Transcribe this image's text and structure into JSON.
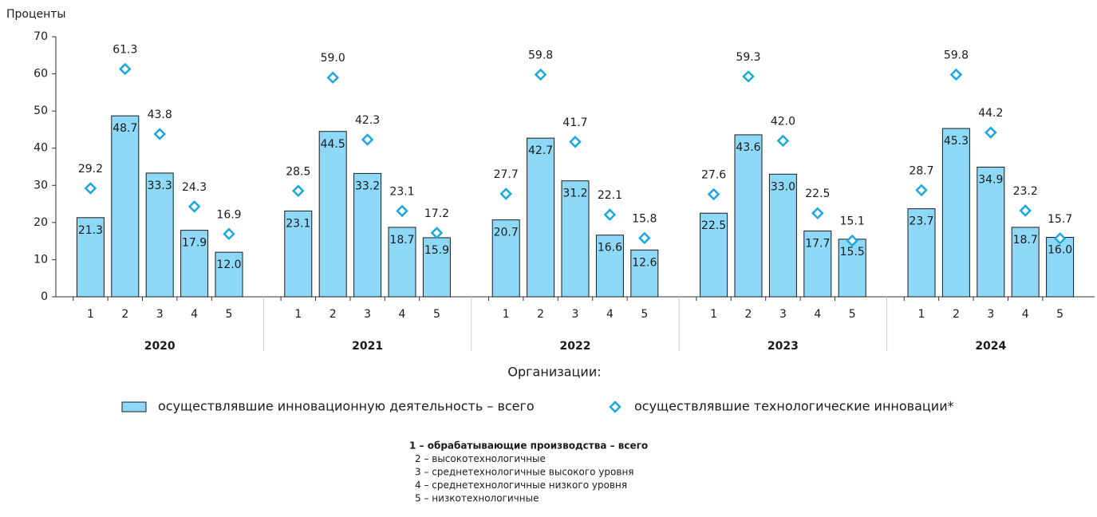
{
  "chart_data": {
    "type": "bar",
    "y_label": "Проценты",
    "groups": [
      "2020",
      "2021",
      "2022",
      "2023",
      "2024"
    ],
    "categories": [
      "1",
      "2",
      "3",
      "4",
      "5",
      "1",
      "2",
      "3",
      "4",
      "5",
      "1",
      "2",
      "3",
      "4",
      "5",
      "1",
      "2",
      "3",
      "4",
      "5",
      "1",
      "2",
      "3",
      "4",
      "5"
    ],
    "ylim": [
      0,
      70
    ],
    "yticks": [
      0,
      10,
      20,
      30,
      40,
      50,
      60,
      70
    ],
    "legend_title": "Организации:",
    "series": [
      {
        "name": "осуществлявшие инновационную деятельность – всего",
        "kind": "bar",
        "color": "#8fd9f8",
        "values": [
          21.3,
          48.7,
          33.3,
          17.9,
          12.0,
          23.1,
          44.5,
          33.2,
          18.7,
          15.9,
          20.7,
          42.7,
          31.2,
          16.6,
          12.6,
          22.5,
          43.6,
          33.0,
          17.7,
          15.5,
          23.7,
          45.3,
          34.9,
          18.7,
          16.0
        ],
        "value_labels": [
          "21.3",
          "48.7",
          "33.3",
          "17.9",
          "12.0",
          "23.1",
          "44.5",
          "33.2",
          "18.7",
          "15.9",
          "20.7",
          "42.7",
          "31.2",
          "16.6",
          "12.6",
          "22.5",
          "43.6",
          "33.0",
          "17.7",
          "15.5",
          "23.7",
          "45.3",
          "34.9",
          "18.7",
          "16.0"
        ]
      },
      {
        "name": "осуществлявшие технологические инновации*",
        "kind": "diamond",
        "color": "#1aa8e0",
        "values": [
          29.2,
          61.3,
          43.8,
          24.3,
          16.9,
          28.5,
          59.0,
          42.3,
          23.1,
          17.2,
          27.7,
          59.8,
          41.7,
          22.1,
          15.8,
          27.6,
          59.3,
          42.0,
          22.5,
          15.1,
          28.7,
          59.8,
          44.2,
          23.2,
          15.7
        ],
        "value_labels": [
          "29.2",
          "61.3",
          "43.8",
          "24.3",
          "16.9",
          "28.5",
          "59.0",
          "42.3",
          "23.1",
          "17.2",
          "27.7",
          "59.8",
          "41.7",
          "22.1",
          "15.8",
          "27.6",
          "59.3",
          "42.0",
          "22.5",
          "15.1",
          "28.7",
          "59.8",
          "44.2",
          "23.2",
          "15.7"
        ]
      }
    ],
    "notes": [
      "1 – обрабатывающие производства – всего",
      "2 – высокотехнологичные",
      "3 – среднетехнологичные высокого уровня",
      "4 – среднетехнологичные низкого уровня",
      "5 – низкотехнологичные"
    ]
  }
}
